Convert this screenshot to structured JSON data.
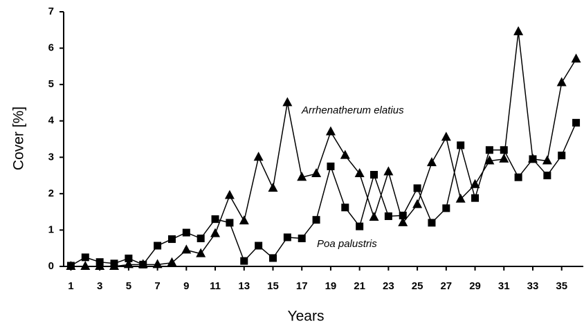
{
  "chart_data": {
    "type": "line",
    "x_label": "Years",
    "y_label": "Cover [%]",
    "x": [
      1,
      2,
      3,
      4,
      5,
      6,
      7,
      8,
      9,
      10,
      11,
      12,
      13,
      14,
      15,
      16,
      17,
      18,
      19,
      20,
      21,
      22,
      23,
      24,
      25,
      26,
      27,
      28,
      29,
      30,
      31,
      32,
      33,
      34,
      35,
      36
    ],
    "xlim": [
      0.5,
      36.5
    ],
    "xticks": [
      1,
      3,
      5,
      7,
      9,
      11,
      13,
      15,
      17,
      19,
      21,
      23,
      25,
      27,
      29,
      31,
      33,
      35
    ],
    "ylim": [
      0,
      7
    ],
    "yticks": [
      0,
      1,
      2,
      3,
      4,
      5,
      6,
      7
    ],
    "series": [
      {
        "name": "Arrhenatherum elatius",
        "color": "#000000",
        "marker": "triangle",
        "values": [
          0.0,
          0.0,
          0.0,
          0.0,
          0.05,
          0.05,
          0.05,
          0.1,
          0.45,
          0.35,
          0.9,
          1.95,
          1.25,
          3.0,
          2.15,
          4.5,
          2.45,
          2.55,
          3.7,
          3.05,
          2.55,
          1.35,
          2.6,
          1.2,
          1.7,
          2.85,
          3.55,
          1.85,
          2.25,
          2.9,
          2.95,
          6.45,
          2.95,
          2.9,
          5.05,
          5.7
        ]
      },
      {
        "name": "Poa palustris",
        "color": "#000000",
        "marker": "square",
        "values": [
          0.02,
          0.25,
          0.12,
          0.08,
          0.22,
          0.05,
          0.57,
          0.75,
          0.93,
          0.77,
          1.3,
          1.2,
          0.15,
          0.57,
          0.23,
          0.8,
          0.77,
          1.28,
          2.75,
          1.62,
          1.1,
          2.52,
          1.38,
          1.4,
          2.15,
          1.2,
          1.6,
          3.33,
          1.88,
          3.2,
          3.2,
          2.45,
          2.95,
          2.5,
          3.05,
          3.95
        ]
      }
    ]
  }
}
